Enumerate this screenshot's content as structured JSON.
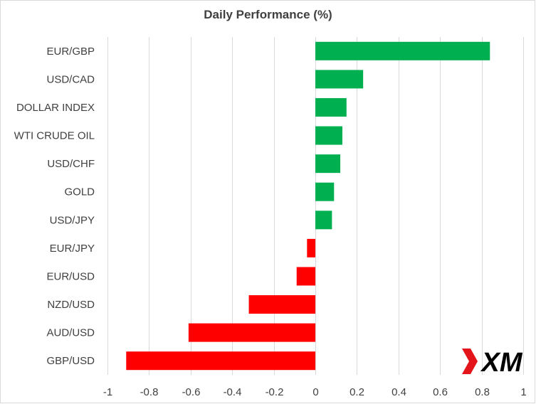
{
  "chart_data": {
    "type": "bar",
    "orientation": "horizontal",
    "title": "Daily Performance  (%)",
    "xlabel": "",
    "ylabel": "",
    "xlim": [
      -1,
      1
    ],
    "x_ticks": [
      -1,
      -0.8,
      -0.6,
      -0.4,
      -0.2,
      0,
      0.2,
      0.4,
      0.6,
      0.8,
      1
    ],
    "x_tick_labels": [
      "-1",
      "-0.8",
      "-0.6",
      "-0.4",
      "-0.2",
      "0",
      "0.2",
      "0.4",
      "0.6",
      "0.8",
      "1"
    ],
    "grid": "vertical",
    "legend": "none",
    "categories": [
      "EUR/GBP",
      "USD/CAD",
      "DOLLAR INDEX",
      "WTI CRUDE OIL",
      "USD/CHF",
      "GOLD",
      "USD/JPY",
      "EUR/JPY",
      "EUR/USD",
      "NZD/USD",
      "AUD/USD",
      "GBP/USD"
    ],
    "values": [
      0.84,
      0.23,
      0.15,
      0.13,
      0.12,
      0.09,
      0.08,
      -0.04,
      -0.09,
      -0.32,
      -0.61,
      -0.91
    ],
    "colors": {
      "positive": "#00B050",
      "negative": "#FF0000",
      "grid": "#d9d9d9",
      "text": "#404040"
    }
  },
  "logo": {
    "text": "XM",
    "colors": {
      "mark": "#e3151b",
      "text": "#000000"
    }
  }
}
